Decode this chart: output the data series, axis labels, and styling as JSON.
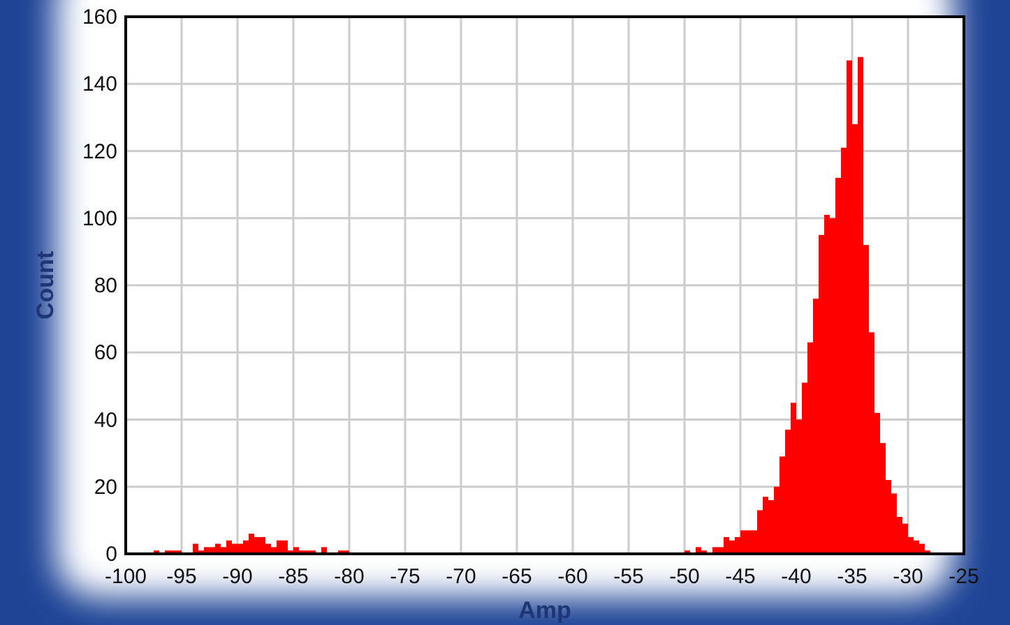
{
  "chart_data": {
    "type": "histogram",
    "xlabel": "Amp",
    "ylabel": "Count",
    "color": "#ff0000",
    "bins": [
      -97.5,
      -97,
      -96.5,
      -96,
      -95.5,
      -95,
      -94.5,
      -94,
      -93.5,
      -93,
      -92.5,
      -92,
      -91.5,
      -91,
      -90.5,
      -90,
      -89.5,
      -89,
      -88.5,
      -88,
      -87.5,
      -87,
      -86.5,
      -86,
      -85.5,
      -85,
      -84.5,
      -84,
      -83.5,
      -83,
      -82.5,
      -82,
      -81.5,
      -81,
      -80.5,
      -80,
      -79.5,
      -79,
      -78.5,
      -78,
      -77.5,
      -77,
      -76.5,
      -76,
      -75.5,
      -75,
      -74.5,
      -74,
      -73.5,
      -73,
      -72.5,
      -72,
      -71.5,
      -71,
      -70.5,
      -70,
      -69.5,
      -69,
      -68.5,
      -68,
      -67.5,
      -67,
      -66.5,
      -66,
      -65.5,
      -65,
      -64.5,
      -64,
      -63.5,
      -63,
      -62.5,
      -62,
      -61.5,
      -61,
      -60.5,
      -60,
      -59.5,
      -59,
      -58.5,
      -58,
      -57.5,
      -57,
      -56.5,
      -56,
      -55.5,
      -55,
      -54.5,
      -54,
      -53.5,
      -53,
      -52.5,
      -52,
      -51.5,
      -51,
      -50.5,
      -50,
      -49.5,
      -49,
      -48.5,
      -48,
      -47.5,
      -47,
      -46.5,
      -46,
      -45.5,
      -45,
      -44.5,
      -44,
      -43.5,
      -43,
      -42.5,
      -42,
      -41.5,
      -41,
      -40.5,
      -40,
      -39.5,
      -39,
      -38.5,
      -38,
      -37.5,
      -37,
      -36.5,
      -36,
      -35.5,
      -35,
      -34.5,
      -34,
      -33.5,
      -33,
      -32.5,
      -32,
      -31.5,
      -31,
      -30.5,
      -30,
      -29.5,
      -29,
      -28.5,
      -28
    ],
    "values": [
      1,
      0,
      1,
      1,
      1,
      0,
      0,
      3,
      1,
      2,
      2,
      3,
      2,
      4,
      3,
      3,
      4,
      6,
      5,
      5,
      3,
      2,
      4,
      4,
      1,
      2,
      1,
      1,
      1,
      0,
      2,
      0,
      0,
      1,
      1,
      0,
      0,
      0,
      0,
      0,
      0,
      0,
      0,
      0,
      0,
      0,
      0,
      0,
      0,
      0,
      0,
      0,
      0,
      0,
      0,
      0,
      0,
      0,
      0,
      0,
      0,
      0,
      0,
      0,
      0,
      0,
      0,
      0,
      0,
      0,
      0,
      0,
      0,
      0,
      0,
      0,
      0,
      0,
      0,
      0,
      0,
      0,
      0,
      0,
      0,
      0,
      0,
      0,
      0,
      0,
      0,
      0,
      0,
      0,
      0,
      1,
      0,
      2,
      1,
      0,
      2,
      2,
      5,
      4,
      5,
      7,
      7,
      7,
      13,
      17,
      16,
      20,
      29,
      37,
      45,
      40,
      51,
      63,
      76,
      95,
      101,
      100,
      112,
      121,
      147,
      128,
      148,
      92,
      66,
      42,
      33,
      22,
      18,
      11,
      9,
      5,
      4,
      3,
      1
    ],
    "xlim": [
      -100,
      -25
    ],
    "ylim": [
      0,
      160
    ],
    "xticks": [
      -100,
      -95,
      -90,
      -85,
      -80,
      -75,
      -70,
      -65,
      -60,
      -55,
      -50,
      -45,
      -40,
      -35,
      -30,
      -25
    ],
    "yticks": [
      0,
      20,
      40,
      60,
      80,
      100,
      120,
      140,
      160
    ],
    "grid": true
  }
}
